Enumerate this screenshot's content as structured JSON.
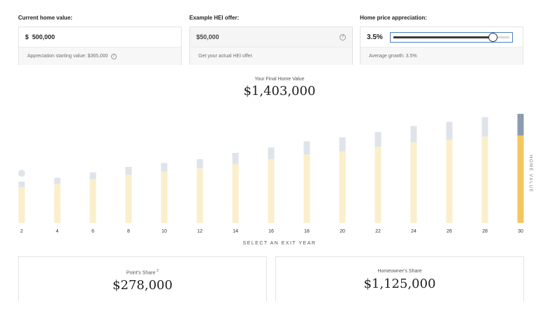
{
  "home_value": {
    "label": "Current home value:",
    "currency_symbol": "$",
    "value": "500,000",
    "appreciation_note": "Appreciation starting value:  $365,000"
  },
  "hei_offer": {
    "label": "Example HEI offer:",
    "value": "$50,000",
    "note": "Get your actual HEI offer."
  },
  "appreciation": {
    "label": "Home price appreciation:",
    "value": "3.5%",
    "slider_fraction": 0.86,
    "note": "Average growth: 3.5%"
  },
  "final": {
    "label": "Your Final Home Value",
    "value": "$1,403,000"
  },
  "chart_data": {
    "type": "bar",
    "categories": [
      2,
      4,
      6,
      8,
      10,
      12,
      14,
      16,
      18,
      20,
      22,
      24,
      26,
      28,
      30
    ],
    "selected_year": 30,
    "y_max": 1403000,
    "series": [
      {
        "name": "Homeowner's Share",
        "values": [
          460000,
          500000,
          560000,
          620000,
          660000,
          700000,
          760000,
          820000,
          880000,
          920000,
          980000,
          1035000,
          1070000,
          1110000,
          1125000
        ]
      },
      {
        "name": "Point's Share",
        "values": [
          70000,
          80000,
          90000,
          100000,
          110000,
          120000,
          140000,
          150000,
          170000,
          180000,
          190000,
          210000,
          230000,
          250000,
          278000
        ]
      }
    ],
    "colors": {
      "homeowner": "#fbeecb",
      "point": "#dfe3ea",
      "homeowner_selected": "#f4c65e",
      "point_selected": "#8c9bb0"
    }
  },
  "chart_side_label": "HOME VALUE",
  "exit_label": "SELECT AN EXIT YEAR",
  "point_share": {
    "label": "Point's Share",
    "footnote": "2",
    "value": "$278,000"
  },
  "homeowner_share": {
    "label": "Homeowner's Share",
    "value": "$1,125,000"
  },
  "icons": {
    "help": "?"
  }
}
